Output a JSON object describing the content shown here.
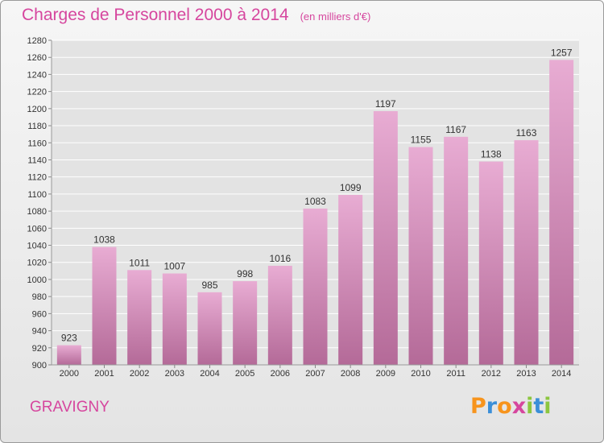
{
  "header": {
    "title": "Charges de Personnel 2000 à 2014",
    "subtitle": "(en milliers d'€)"
  },
  "footer": {
    "town": "GRAVIGNY",
    "logo_letters": [
      "P",
      "r",
      "o",
      "x",
      "i",
      "t",
      "i"
    ],
    "logo_colors": [
      "#f7941d",
      "#3b8fd8",
      "#f7941d",
      "#d6469e",
      "#8cc63f",
      "#3b8fd8",
      "#8cc63f"
    ]
  },
  "colors": {
    "accent": "#d6469e",
    "bar_light": "#e8acd3",
    "bar_dark": "#b46a98",
    "grid": "#ffffff"
  },
  "chart_data": {
    "type": "bar",
    "title": "Charges de Personnel 2000 à 2014",
    "subtitle": "(en milliers d'€)",
    "categories": [
      "2000",
      "2001",
      "2002",
      "2003",
      "2004",
      "2005",
      "2006",
      "2007",
      "2008",
      "2009",
      "2010",
      "2011",
      "2012",
      "2013",
      "2014"
    ],
    "values": [
      923,
      1038,
      1011,
      1007,
      985,
      998,
      1016,
      1083,
      1099,
      1197,
      1155,
      1167,
      1138,
      1163,
      1257
    ],
    "ylim": [
      900,
      1280
    ],
    "ytick_step": 20,
    "grid": true
  }
}
